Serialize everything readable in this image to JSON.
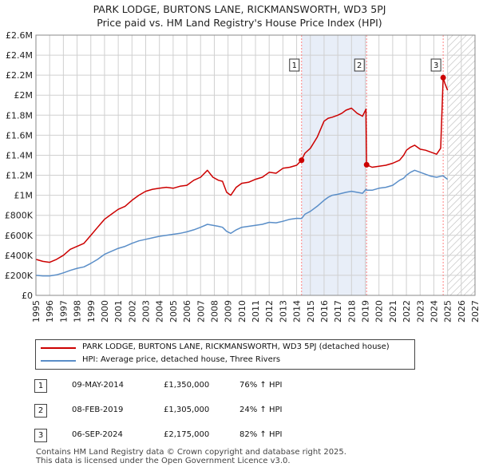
{
  "title": "PARK LODGE, BURTONS LANE, RICKMANSWORTH, WD3 5PJ",
  "subtitle": "Price paid vs. HM Land Registry's House Price Index (HPI)",
  "colors": {
    "property": "#cc0000",
    "hpi": "#5a8ec8",
    "shade": "#e8eef8",
    "grid": "#d0d0d0",
    "vline": "#ff8080"
  },
  "legend": [
    {
      "label": "PARK LODGE, BURTONS LANE, RICKMANSWORTH, WD3 5PJ (detached house)"
    },
    {
      "label": "HPI: Average price, detached house, Three Rivers"
    }
  ],
  "transactions": [
    {
      "num": "1",
      "date": "09-MAY-2014",
      "price": "£1,350,000",
      "hpi": "76% ↑ HPI"
    },
    {
      "num": "2",
      "date": "08-FEB-2019",
      "price": "£1,305,000",
      "hpi": "24% ↑ HPI"
    },
    {
      "num": "3",
      "date": "06-SEP-2024",
      "price": "£2,175,000",
      "hpi": "82% ↑ HPI"
    }
  ],
  "footer": {
    "line1": "Contains HM Land Registry data © Crown copyright and database right 2025.",
    "line2": "This data is licensed under the Open Government Licence v3.0."
  },
  "chart_data": {
    "type": "line",
    "xlim": [
      1995,
      2027
    ],
    "ylim": [
      0,
      2600000
    ],
    "yticks": [
      {
        "value": 0,
        "label": "£0"
      },
      {
        "value": 200000,
        "label": "£200K"
      },
      {
        "value": 400000,
        "label": "£400K"
      },
      {
        "value": 600000,
        "label": "£600K"
      },
      {
        "value": 800000,
        "label": "£800K"
      },
      {
        "value": 1000000,
        "label": "£1M"
      },
      {
        "value": 1200000,
        "label": "£1.2M"
      },
      {
        "value": 1400000,
        "label": "£1.4M"
      },
      {
        "value": 1600000,
        "label": "£1.6M"
      },
      {
        "value": 1800000,
        "label": "£1.8M"
      },
      {
        "value": 2000000,
        "label": "£2M"
      },
      {
        "value": 2200000,
        "label": "£2.2M"
      },
      {
        "value": 2400000,
        "label": "£2.4M"
      },
      {
        "value": 2600000,
        "label": "£2.6M"
      }
    ],
    "xticks": [
      1995,
      1996,
      1997,
      1998,
      1999,
      2000,
      2001,
      2002,
      2003,
      2004,
      2005,
      2006,
      2007,
      2008,
      2009,
      2010,
      2011,
      2012,
      2013,
      2014,
      2015,
      2016,
      2017,
      2018,
      2019,
      2020,
      2021,
      2022,
      2023,
      2024,
      2025,
      2026,
      2027
    ],
    "shaded_range": [
      2014.36,
      2019.1
    ],
    "hatched_from": 2025.0,
    "markers": [
      {
        "label": "1",
        "x": 2014.36,
        "y": 1350000
      },
      {
        "label": "2",
        "x": 2019.1,
        "y": 1305000
      },
      {
        "label": "3",
        "x": 2024.68,
        "y": 2175000
      }
    ],
    "series": [
      {
        "name": "PARK LODGE, BURTONS LANE, RICKMANSWORTH, WD3 5PJ (detached house)",
        "x": [
          1995.0,
          1995.5,
          1996.0,
          1996.5,
          1997.0,
          1997.5,
          1998.0,
          1998.5,
          1999.0,
          1999.5,
          2000.0,
          2000.5,
          2001.0,
          2001.5,
          2002.0,
          2002.5,
          2003.0,
          2003.5,
          2004.0,
          2004.5,
          2005.0,
          2005.5,
          2006.0,
          2006.5,
          2007.0,
          2007.5,
          2007.9,
          2008.3,
          2008.6,
          2008.9,
          2009.2,
          2009.6,
          2010.0,
          2010.5,
          2011.0,
          2011.5,
          2012.0,
          2012.5,
          2013.0,
          2013.5,
          2014.0,
          2014.36,
          2014.6,
          2015.0,
          2015.5,
          2016.0,
          2016.3,
          2016.6,
          2017.0,
          2017.3,
          2017.6,
          2018.0,
          2018.4,
          2018.8,
          2019.05,
          2019.1,
          2019.5,
          2020.0,
          2020.5,
          2021.0,
          2021.5,
          2021.8,
          2022.0,
          2022.3,
          2022.6,
          2023.0,
          2023.4,
          2023.8,
          2024.2,
          2024.5,
          2024.68,
          2024.8,
          2025.0
        ],
        "y": [
          360000,
          340000,
          330000,
          360000,
          400000,
          460000,
          490000,
          520000,
          600000,
          680000,
          760000,
          810000,
          860000,
          890000,
          950000,
          1000000,
          1040000,
          1060000,
          1070000,
          1080000,
          1070000,
          1090000,
          1100000,
          1150000,
          1180000,
          1250000,
          1180000,
          1150000,
          1140000,
          1030000,
          1000000,
          1080000,
          1120000,
          1130000,
          1160000,
          1180000,
          1230000,
          1220000,
          1270000,
          1280000,
          1300000,
          1350000,
          1420000,
          1470000,
          1580000,
          1740000,
          1770000,
          1780000,
          1800000,
          1820000,
          1850000,
          1870000,
          1820000,
          1790000,
          1860000,
          1305000,
          1280000,
          1290000,
          1300000,
          1320000,
          1350000,
          1400000,
          1450000,
          1480000,
          1500000,
          1460000,
          1450000,
          1430000,
          1410000,
          1470000,
          2175000,
          2120000,
          2050000
        ]
      },
      {
        "name": "HPI: Average price, detached house, Three Rivers",
        "x": [
          1995.0,
          1995.5,
          1996.0,
          1996.5,
          1997.0,
          1997.5,
          1998.0,
          1998.5,
          1999.0,
          1999.5,
          2000.0,
          2000.5,
          2001.0,
          2001.5,
          2002.0,
          2002.5,
          2003.0,
          2003.5,
          2004.0,
          2004.5,
          2005.0,
          2005.5,
          2006.0,
          2006.5,
          2007.0,
          2007.5,
          2007.9,
          2008.3,
          2008.6,
          2008.9,
          2009.2,
          2009.6,
          2010.0,
          2010.5,
          2011.0,
          2011.5,
          2012.0,
          2012.5,
          2013.0,
          2013.5,
          2014.0,
          2014.36,
          2014.6,
          2015.0,
          2015.5,
          2016.0,
          2016.3,
          2016.6,
          2017.0,
          2017.3,
          2017.6,
          2018.0,
          2018.4,
          2018.8,
          2019.05,
          2019.1,
          2019.5,
          2020.0,
          2020.5,
          2021.0,
          2021.5,
          2021.8,
          2022.0,
          2022.3,
          2022.6,
          2023.0,
          2023.4,
          2023.8,
          2024.2,
          2024.5,
          2024.68,
          2024.8,
          2025.0
        ],
        "y": [
          200000,
          195000,
          195000,
          205000,
          225000,
          250000,
          270000,
          285000,
          320000,
          360000,
          410000,
          440000,
          470000,
          490000,
          520000,
          545000,
          560000,
          575000,
          590000,
          600000,
          610000,
          620000,
          635000,
          655000,
          680000,
          710000,
          700000,
          690000,
          680000,
          640000,
          620000,
          655000,
          680000,
          690000,
          700000,
          710000,
          730000,
          725000,
          740000,
          760000,
          770000,
          767000,
          810000,
          840000,
          890000,
          950000,
          980000,
          1000000,
          1010000,
          1020000,
          1030000,
          1040000,
          1030000,
          1020000,
          1060000,
          1050000,
          1050000,
          1070000,
          1080000,
          1100000,
          1150000,
          1170000,
          1200000,
          1230000,
          1250000,
          1230000,
          1210000,
          1190000,
          1180000,
          1190000,
          1195000,
          1180000,
          1160000
        ]
      }
    ]
  }
}
